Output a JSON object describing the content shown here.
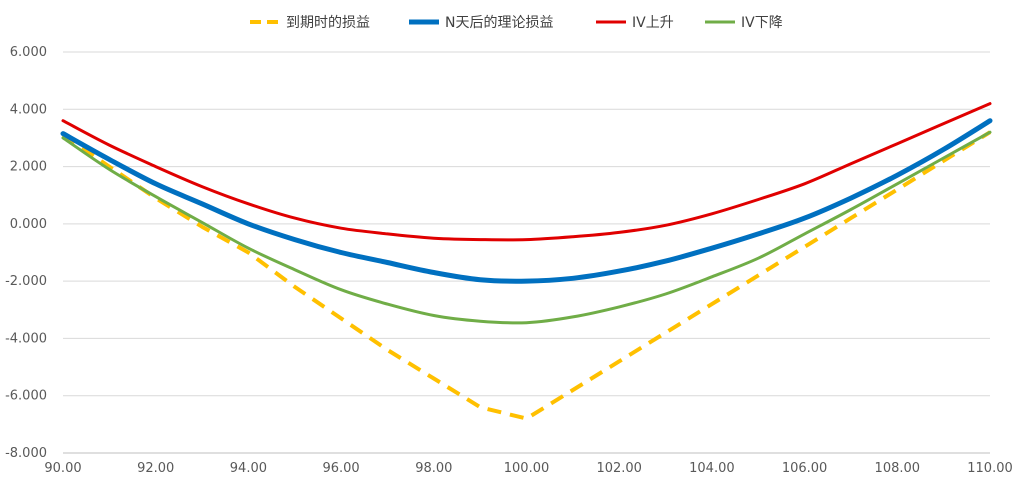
{
  "chart_data": {
    "type": "line",
    "title": "",
    "xlabel": "",
    "ylabel": "",
    "xlim": [
      90,
      110
    ],
    "ylim": [
      -8,
      6
    ],
    "grid": true,
    "legend_position": "top",
    "x_ticks": [
      "90.00",
      "92.00",
      "94.00",
      "96.00",
      "98.00",
      "100.00",
      "102.00",
      "104.00",
      "106.00",
      "108.00",
      "110.00"
    ],
    "y_ticks": [
      "6.000",
      "4.000",
      "2.000",
      "0.000",
      "-2.000",
      "-4.000",
      "-6.000",
      "-8.000"
    ],
    "x": [
      90,
      91,
      92,
      93,
      94,
      95,
      96,
      97,
      98,
      99,
      100,
      101,
      102,
      103,
      104,
      105,
      106,
      107,
      108,
      109,
      110
    ],
    "series": [
      {
        "name": "到期时的损益",
        "color": "#FFC000",
        "dashed": true,
        "values": [
          3.1,
          2.0,
          0.9,
          -0.1,
          -1.0,
          -2.2,
          -3.3,
          -4.4,
          -5.4,
          -6.4,
          -6.8,
          -5.8,
          -4.8,
          -3.8,
          -2.8,
          -1.8,
          -0.8,
          0.2,
          1.2,
          2.2,
          3.2
        ]
      },
      {
        "name": "N天后的理论损益",
        "color": "#0070C0",
        "dashed": false,
        "values": [
          3.15,
          2.25,
          1.4,
          0.7,
          0.0,
          -0.55,
          -1.0,
          -1.35,
          -1.7,
          -1.95,
          -2.0,
          -1.9,
          -1.65,
          -1.3,
          -0.85,
          -0.35,
          0.2,
          0.9,
          1.7,
          2.6,
          3.6
        ]
      },
      {
        "name": "IV上升",
        "color": "#E00000",
        "dashed": false,
        "values": [
          3.6,
          2.75,
          2.0,
          1.3,
          0.7,
          0.2,
          -0.15,
          -0.35,
          -0.5,
          -0.55,
          -0.55,
          -0.45,
          -0.3,
          -0.05,
          0.35,
          0.85,
          1.4,
          2.1,
          2.8,
          3.5,
          4.2
        ]
      },
      {
        "name": "IV下降",
        "color": "#70AD47",
        "dashed": false,
        "values": [
          3.0,
          1.9,
          0.95,
          0.05,
          -0.85,
          -1.6,
          -2.3,
          -2.8,
          -3.2,
          -3.4,
          -3.45,
          -3.25,
          -2.9,
          -2.45,
          -1.85,
          -1.2,
          -0.35,
          0.5,
          1.4,
          2.3,
          3.2
        ]
      }
    ]
  }
}
